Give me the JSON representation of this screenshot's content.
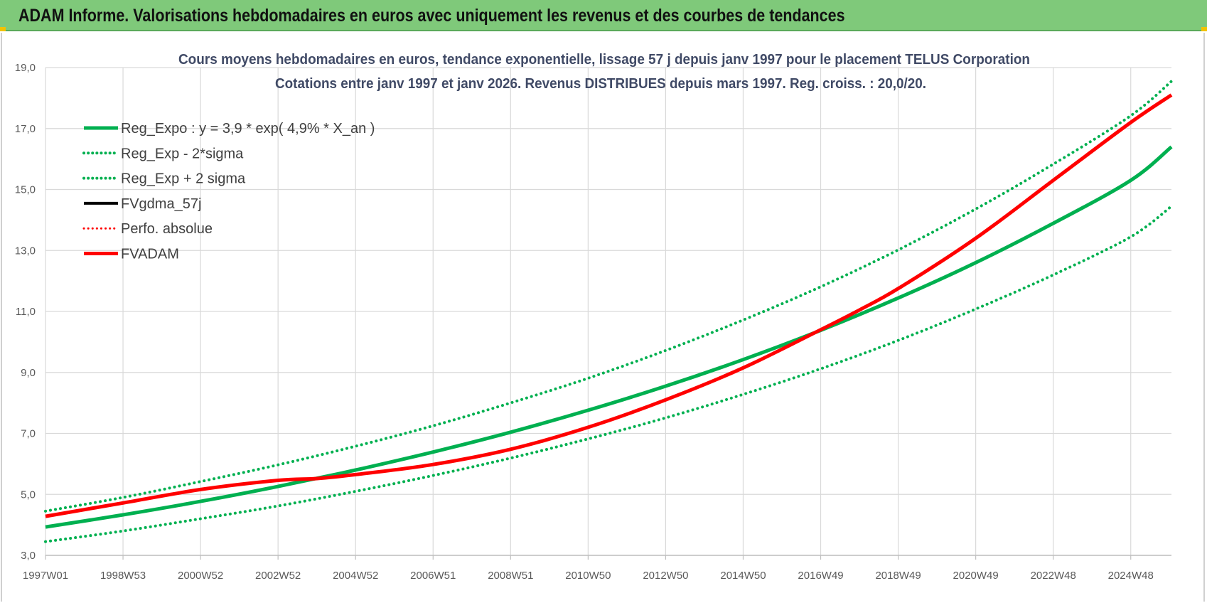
{
  "header": {
    "title": "ADAM Informe. Valorisations hebdomadaires en euros avec uniquement les revenus et des courbes de tendances"
  },
  "colors": {
    "banner": "#7fc97a",
    "trend": "#00b050",
    "adam": "#ff0000",
    "gdma": "#000000",
    "grid": "#d9d9d9",
    "axis_text": "#595959",
    "title_text": "#404a66"
  },
  "chart_data": {
    "type": "line",
    "title_line1": "Cours moyens  hebdomadaires en euros, tendance exponentielle, lissage 57 j depuis janv 1997 pour le placement TELUS Corporation",
    "title_line2": "Cotations entre janv 1997 et janv 2026. Revenus DISTRIBUES depuis mars 1997.  Reg. croiss. : 20,0/20.",
    "xlabel": "",
    "ylabel": "",
    "ylim": [
      3.0,
      19.0
    ],
    "xlim": [
      1997.0,
      2026.05
    ],
    "grid": true,
    "legend_position": "top-left",
    "y_ticks": [
      "3,0",
      "5,0",
      "7,0",
      "9,0",
      "11,0",
      "13,0",
      "15,0",
      "17,0",
      "19,0"
    ],
    "x_ticks": [
      {
        "label": "1997W01",
        "x": 1997.0
      },
      {
        "label": "1998W53",
        "x": 1999.0
      },
      {
        "label": "2000W52",
        "x": 2001.0
      },
      {
        "label": "2002W52",
        "x": 2003.0
      },
      {
        "label": "2004W52",
        "x": 2005.0
      },
      {
        "label": "2006W51",
        "x": 2007.0
      },
      {
        "label": "2008W51",
        "x": 2009.0
      },
      {
        "label": "2010W50",
        "x": 2011.0
      },
      {
        "label": "2012W50",
        "x": 2013.0
      },
      {
        "label": "2014W50",
        "x": 2015.0
      },
      {
        "label": "2016W49",
        "x": 2017.0
      },
      {
        "label": "2018W49",
        "x": 2019.0
      },
      {
        "label": "2020W49",
        "x": 2021.0
      },
      {
        "label": "2022W48",
        "x": 2023.0
      },
      {
        "label": "2024W48",
        "x": 2025.0
      }
    ],
    "legend": [
      {
        "label": "Reg_Expo : y = 3,9 * exp( 4,9% *  X_an )",
        "color": "#00b050",
        "style": "solid",
        "width": 5
      },
      {
        "label": "Reg_Exp - 2*sigma",
        "color": "#00b050",
        "style": "dotted",
        "width": 4
      },
      {
        "label": "Reg_Exp + 2 sigma",
        "color": "#00b050",
        "style": "dotted",
        "width": 4
      },
      {
        "label": "FVgdma_57j",
        "color": "#000000",
        "style": "solid",
        "width": 4
      },
      {
        "label": "Perfo. absolue",
        "color": "#ff0000",
        "style": "dotted",
        "width": 3
      },
      {
        "label": "FVADAM",
        "color": "#ff0000",
        "style": "solid",
        "width": 5
      }
    ],
    "series": [
      {
        "name": "Reg_Expo : y = 3,9 * exp( 4,9% *  X_an )",
        "color": "#00b050",
        "style": "solid",
        "width": 5,
        "x": [
          1997.0,
          1999.0,
          2001.0,
          2003.0,
          2005.0,
          2007.0,
          2009.0,
          2011.0,
          2013.0,
          2015.0,
          2017.0,
          2019.0,
          2021.0,
          2023.0,
          2025.0,
          2026.05
        ],
        "values": [
          3.93,
          4.33,
          4.77,
          5.26,
          5.8,
          6.39,
          7.04,
          7.76,
          8.55,
          9.42,
          10.38,
          11.44,
          12.6,
          13.89,
          15.3,
          16.4
        ]
      },
      {
        "name": "Reg_Exp - 2*sigma",
        "color": "#00b050",
        "style": "dotted",
        "width": 4,
        "x": [
          1997.0,
          1999.0,
          2001.0,
          2003.0,
          2005.0,
          2007.0,
          2009.0,
          2011.0,
          2013.0,
          2015.0,
          2017.0,
          2019.0,
          2021.0,
          2023.0,
          2025.0,
          2026.05
        ],
        "values": [
          3.45,
          3.8,
          4.2,
          4.62,
          5.1,
          5.62,
          6.19,
          6.82,
          7.51,
          8.28,
          9.12,
          10.05,
          11.08,
          12.2,
          13.45,
          14.45
        ]
      },
      {
        "name": "Reg_Exp + 2 sigma",
        "color": "#00b050",
        "style": "dotted",
        "width": 4,
        "x": [
          1997.0,
          1999.0,
          2001.0,
          2003.0,
          2005.0,
          2007.0,
          2009.0,
          2011.0,
          2013.0,
          2015.0,
          2017.0,
          2019.0,
          2021.0,
          2023.0,
          2025.0,
          2026.05
        ],
        "values": [
          4.45,
          4.9,
          5.42,
          5.97,
          6.58,
          7.25,
          8.0,
          8.81,
          9.72,
          10.72,
          11.81,
          13.02,
          14.36,
          15.83,
          17.42,
          18.55
        ]
      },
      {
        "name": "FVADAM",
        "color": "#ff0000",
        "style": "solid",
        "width": 5,
        "x": [
          1997.0,
          1999.0,
          2001.0,
          2003.0,
          2004.0,
          2005.0,
          2007.0,
          2009.0,
          2011.0,
          2013.0,
          2015.0,
          2017.0,
          2018.0,
          2019.0,
          2021.0,
          2023.0,
          2025.0,
          2026.05
        ],
        "values": [
          4.28,
          4.72,
          5.16,
          5.46,
          5.52,
          5.65,
          5.98,
          6.48,
          7.2,
          8.1,
          9.15,
          10.4,
          11.05,
          11.75,
          13.4,
          15.3,
          17.2,
          18.1
        ]
      }
    ]
  }
}
